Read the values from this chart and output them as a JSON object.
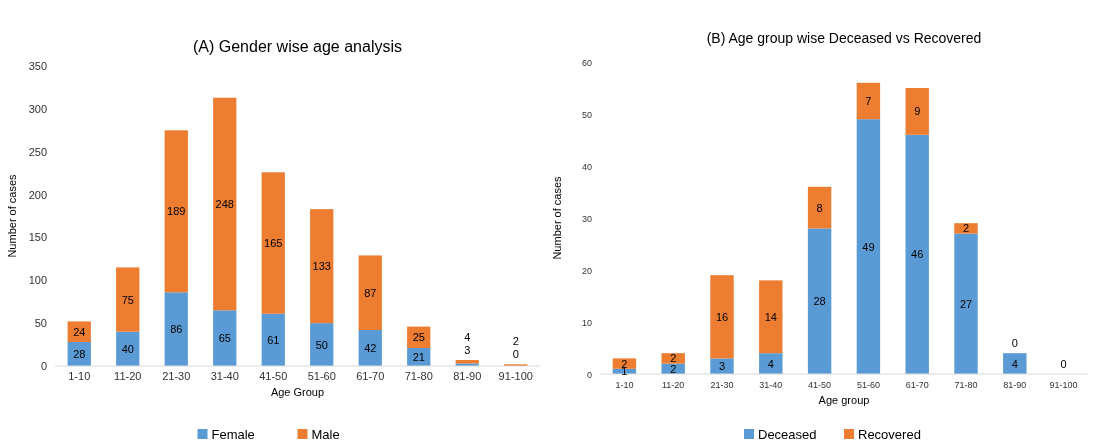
{
  "chart_data": [
    {
      "type": "bar",
      "title": "(A) Gender wise age analysis",
      "xlabel": "Age Group",
      "ylabel": "Number of cases",
      "categories": [
        "1-10",
        "11-20",
        "21-30",
        "31-40",
        "41-50",
        "51-60",
        "61-70",
        "71-80",
        "81-90",
        "91-100"
      ],
      "stacked": true,
      "data_labels": true,
      "legend": "bottom",
      "ylim": [
        0,
        350
      ],
      "yticks": [
        0,
        50,
        100,
        150,
        200,
        250,
        300,
        350
      ],
      "series": [
        {
          "name": "Female",
          "color": "#5b9bd5",
          "values": [
            28,
            40,
            86,
            65,
            61,
            50,
            42,
            21,
            3,
            0
          ]
        },
        {
          "name": "Male",
          "color": "#ed7d31",
          "values": [
            24,
            75,
            189,
            248,
            165,
            133,
            87,
            25,
            4,
            2
          ]
        }
      ]
    },
    {
      "type": "bar",
      "title": "(B) Age group wise Deceased vs Recovered",
      "xlabel": "Age group",
      "ylabel": "Number of cases",
      "categories": [
        "1-10",
        "11-20",
        "21-30",
        "31-40",
        "41-50",
        "51-60",
        "61-70",
        "71-80",
        "81-90",
        "91-100"
      ],
      "stacked": true,
      "data_labels": true,
      "legend": "bottom",
      "ylim": [
        0,
        60
      ],
      "yticks": [
        0,
        10,
        20,
        30,
        40,
        50,
        60
      ],
      "series": [
        {
          "name": "Deceased",
          "color": "#5b9bd5",
          "values": [
            1,
            2,
            3,
            4,
            28,
            49,
            46,
            27,
            4,
            0
          ]
        },
        {
          "name": "Recovered",
          "color": "#ed7d31",
          "values": [
            2,
            2,
            16,
            14,
            8,
            7,
            9,
            2,
            0,
            0
          ],
          "value_labels": [
            "2",
            "2",
            "16",
            "14",
            "8",
            "7",
            "9",
            "2",
            "0",
            null
          ]
        }
      ]
    }
  ]
}
